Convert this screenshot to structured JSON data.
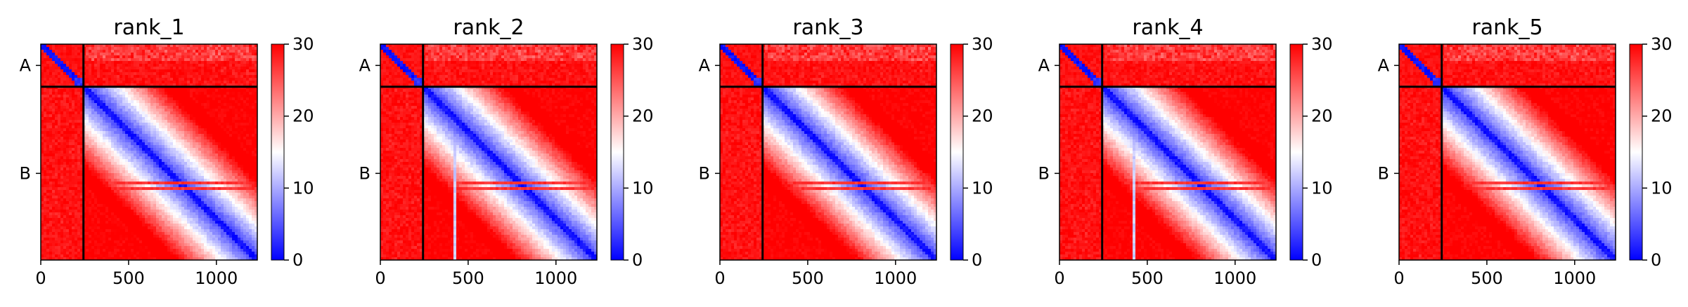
{
  "chart_data": [
    {
      "type": "heatmap",
      "title": "rank_1",
      "chain_labels": [
        "A",
        "B"
      ],
      "chain_lengths": [
        243,
        990
      ],
      "x_ticks": [
        0,
        500,
        1000
      ],
      "xlim": [
        0,
        1233
      ],
      "colorbar": {
        "range": [
          0,
          30
        ],
        "ticks": [
          0,
          10,
          20,
          30
        ],
        "colormap": "bwr"
      },
      "pattern_seed": 1
    },
    {
      "type": "heatmap",
      "title": "rank_2",
      "chain_labels": [
        "A",
        "B"
      ],
      "chain_lengths": [
        243,
        990
      ],
      "x_ticks": [
        0,
        500,
        1000
      ],
      "xlim": [
        0,
        1233
      ],
      "colorbar": {
        "range": [
          0,
          30
        ],
        "ticks": [
          0,
          10,
          20,
          30
        ],
        "colormap": "bwr"
      },
      "pattern_seed": 2
    },
    {
      "type": "heatmap",
      "title": "rank_3",
      "chain_labels": [
        "A",
        "B"
      ],
      "chain_lengths": [
        243,
        990
      ],
      "x_ticks": [
        0,
        500,
        1000
      ],
      "xlim": [
        0,
        1233
      ],
      "colorbar": {
        "range": [
          0,
          30
        ],
        "ticks": [
          0,
          10,
          20,
          30
        ],
        "colormap": "bwr"
      },
      "pattern_seed": 3
    },
    {
      "type": "heatmap",
      "title": "rank_4",
      "chain_labels": [
        "A",
        "B"
      ],
      "chain_lengths": [
        243,
        990
      ],
      "x_ticks": [
        0,
        500,
        1000
      ],
      "xlim": [
        0,
        1233
      ],
      "colorbar": {
        "range": [
          0,
          30
        ],
        "ticks": [
          0,
          10,
          20,
          30
        ],
        "colormap": "bwr"
      },
      "pattern_seed": 4
    },
    {
      "type": "heatmap",
      "title": "rank_5",
      "chain_labels": [
        "A",
        "B"
      ],
      "chain_lengths": [
        243,
        990
      ],
      "x_ticks": [
        0,
        500,
        1000
      ],
      "xlim": [
        0,
        1233
      ],
      "colorbar": {
        "range": [
          0,
          30
        ],
        "ticks": [
          0,
          10,
          20,
          30
        ],
        "colormap": "bwr"
      },
      "pattern_seed": 5
    }
  ],
  "colors": {
    "low": "#0000ff",
    "mid": "#ffffff",
    "high": "#ff0000",
    "divider": "#000000"
  }
}
